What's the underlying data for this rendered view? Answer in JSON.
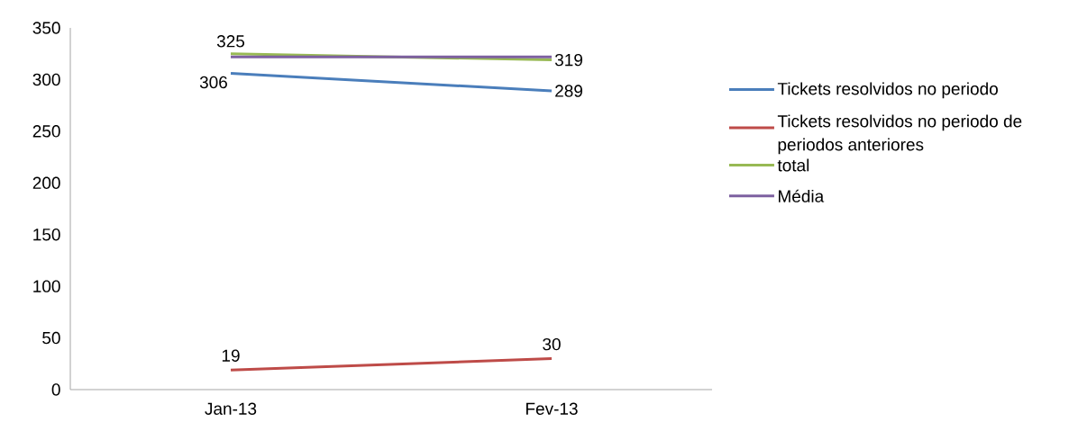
{
  "chart_data": {
    "type": "line",
    "categories": [
      "Jan-13",
      "Fev-13"
    ],
    "series": [
      {
        "name": "Tickets resolvidos no periodo",
        "color": "#4a7ebb",
        "values": [
          306,
          289
        ],
        "value_labels": [
          "306",
          "289"
        ]
      },
      {
        "name": "Tickets resolvidos no periodo de periodos anteriores",
        "color": "#be4b48",
        "values": [
          19,
          30
        ],
        "value_labels": [
          "19",
          "30"
        ]
      },
      {
        "name": "total",
        "color": "#98b954",
        "values": [
          325,
          319
        ],
        "value_labels": [
          "325",
          "319"
        ]
      },
      {
        "name": "Média",
        "color": "#7d60a0",
        "values": [
          322,
          322
        ]
      }
    ],
    "ylim": [
      0,
      350
    ],
    "yticks": [
      0,
      50,
      100,
      150,
      200,
      250,
      300,
      350
    ],
    "legend": "right",
    "marker": "none",
    "line_style": "solid",
    "grid": false
  }
}
